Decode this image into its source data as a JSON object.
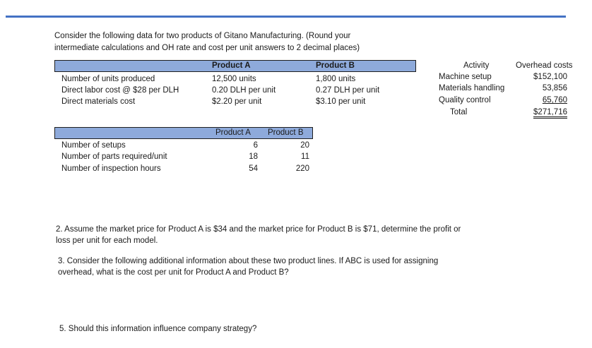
{
  "intro": {
    "line1": "Consider the following data for two products of Gitano Manufacturing. (Round your",
    "line2": "intermediate calculations and OH rate and cost per unit answers to 2 decimal places)"
  },
  "table1": {
    "headers": [
      "Product A",
      "Product B"
    ],
    "rows": [
      {
        "label": "Number of units produced",
        "a": "12,500 units",
        "b": "1,800 units"
      },
      {
        "label": "Direct labor cost @ $28 per DLH",
        "a": "0.20 DLH per unit",
        "b": "0.27 DLH per unit"
      },
      {
        "label": "Direct materials cost",
        "a": "$2.20 per unit",
        "b": "$3.10 per unit"
      }
    ]
  },
  "overhead": {
    "header_activity": "Activity",
    "header_costs": "Overhead costs",
    "rows": [
      {
        "activity": "Machine setup",
        "cost": "$152,100"
      },
      {
        "activity": "Materials handling",
        "cost": "53,856"
      },
      {
        "activity": "Quality control",
        "cost": "65,760"
      }
    ],
    "total_label": "Total",
    "total_value": "$271,716"
  },
  "table2": {
    "headers": [
      "Product A",
      "Product B"
    ],
    "rows": [
      {
        "label": "Number of setups",
        "a": "6",
        "b": "20"
      },
      {
        "label": "Number of parts required/unit",
        "a": "18",
        "b": "11"
      },
      {
        "label": "Number of inspection hours",
        "a": "54",
        "b": "220"
      }
    ]
  },
  "questions": {
    "q2_line1": "2.  Assume the market price for Product A is $34 and the market price for Product B is $71, determine the profit or",
    "q2_line2": "loss per unit for each model.",
    "q3_line1": "3.  Consider the following additional information about these two product lines.  If ABC is used for assigning",
    "q3_line2": "overhead, what is the cost per unit for Product A and Product B?",
    "q5": "5.  Should this information influence company strategy?"
  }
}
